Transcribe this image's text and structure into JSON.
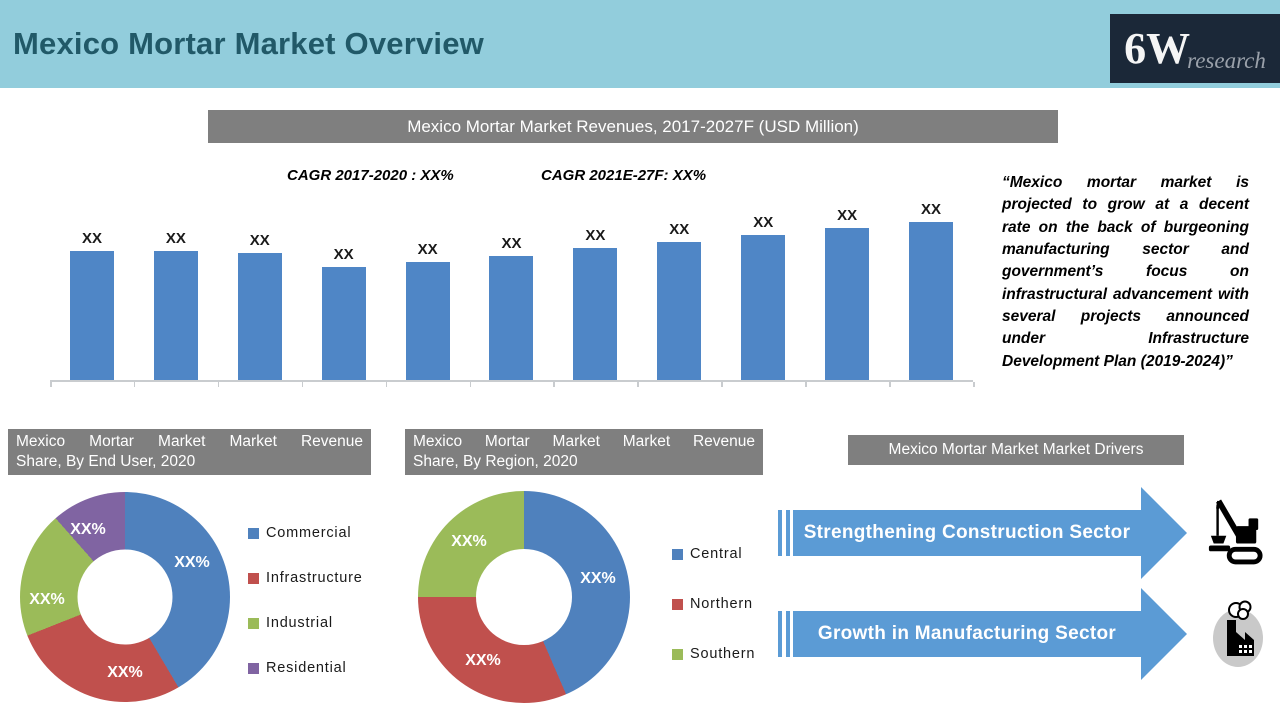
{
  "header": {
    "title": "Mexico Mortar Market Overview",
    "logo_main": "6W",
    "logo_sub": "research"
  },
  "revenue_section": {
    "title_bar": "Mexico Mortar Market Revenues, 2017-2027F (USD Million)",
    "cagr_left": "CAGR 2017-2020 : XX%",
    "cagr_right": "CAGR 2021E-27F: XX%"
  },
  "quote": "“Mexico mortar market is projected to grow at a decent rate  on the back of burgeoning manufacturing sector and government’s focus on infrastructural advancement with several projects announced under Infrastructure Development Plan (2019-2024)”",
  "panels": {
    "end_user": {
      "title_line1": "Mexico Mortar Market Market Revenue",
      "title_line2": "Share, By End User, 2020"
    },
    "region": {
      "title_line1": "Mexico Mortar Market Market Revenue",
      "title_line2": "Share, By Region, 2020"
    },
    "drivers": {
      "title": "Mexico Mortar Market Market Drivers"
    }
  },
  "drivers": {
    "arrows": [
      {
        "label": "Strengthening  Construction Sector",
        "icon": "construction-crane-icon"
      },
      {
        "label": "Growth in Manufacturing  Sector",
        "icon": "factory-icon"
      }
    ],
    "arrow_color": "#5B9BD5"
  },
  "colors": {
    "header_bg": "#92CDDC",
    "header_text": "#215968",
    "logo_bg": "#1B2838",
    "title_bar_bg": "#7F7F7F",
    "bar_blue": "#4F86C6",
    "donut_blue": "#4F81BD",
    "donut_red": "#C0504D",
    "donut_green": "#9BBB59",
    "donut_purple": "#8064A2"
  },
  "chart_data": [
    {
      "type": "bar",
      "title": "Mexico Mortar Market Revenues, 2017-2027F (USD Million)",
      "xlabel": "",
      "ylabel": "",
      "n_bars": 11,
      "x_tick_labels_visible": false,
      "bar_labels": [
        "XX",
        "XX",
        "XX",
        "XX",
        "XX",
        "XX",
        "XX",
        "XX",
        "XX",
        "XX",
        "XX"
      ],
      "relative_heights": [
        129,
        129,
        127,
        113,
        118,
        124,
        132,
        138,
        145,
        152,
        158
      ],
      "bar_color": "#4F86C6",
      "annotations": [
        "CAGR 2017-2020 : XX%",
        "CAGR 2021E-27F: XX%"
      ]
    },
    {
      "type": "pie",
      "subtype": "donut",
      "title": "Mexico Mortar Market Market Revenue Share, By End User, 2020",
      "segments": [
        {
          "label": "Commercial",
          "value_label": "XX%",
          "color": "#4F81BD",
          "est_share_pct": 41.5
        },
        {
          "label": "Infrastructure",
          "value_label": "XX%",
          "color": "#C0504D",
          "est_share_pct": 27.5
        },
        {
          "label": "Industrial",
          "value_label": "XX%",
          "color": "#9BBB59",
          "est_share_pct": 19.5
        },
        {
          "label": "Residential",
          "value_label": "XX%",
          "color": "#8064A2",
          "est_share_pct": 11.5
        }
      ],
      "legend_position": "right"
    },
    {
      "type": "pie",
      "subtype": "donut",
      "title": "Mexico Mortar Market Market Revenue Share, By Region, 2020",
      "segments": [
        {
          "label": "Central",
          "value_label": "XX%",
          "color": "#4F81BD",
          "est_share_pct": 43.5
        },
        {
          "label": "Northern",
          "value_label": "XX%",
          "color": "#C0504D",
          "est_share_pct": 31.5
        },
        {
          "label": "Southern",
          "value_label": "XX%",
          "color": "#9BBB59",
          "est_share_pct": 25.0
        }
      ],
      "legend_position": "right"
    }
  ]
}
